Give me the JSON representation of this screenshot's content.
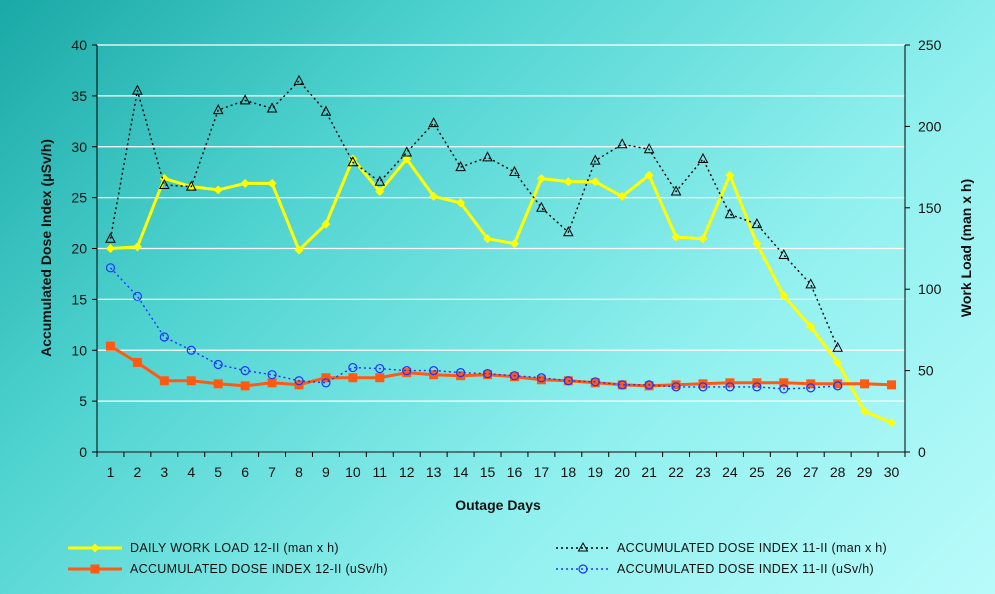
{
  "chart_data": {
    "type": "line",
    "xlabel": "Outage Days",
    "ylabel": "Accumulated Dose Index (μSv/h)",
    "y2label": "Work Load (man x h)",
    "categories": [
      "1",
      "2",
      "3",
      "4",
      "5",
      "6",
      "7",
      "8",
      "9",
      "10",
      "11",
      "12",
      "13",
      "14",
      "15",
      "16",
      "17",
      "18",
      "19",
      "20",
      "21",
      "22",
      "23",
      "24",
      "25",
      "26",
      "27",
      "28",
      "29",
      "30"
    ],
    "ylim": [
      0,
      40
    ],
    "y2lim": [
      0,
      250
    ],
    "yticks": [
      "0",
      "5",
      "10",
      "15",
      "20",
      "25",
      "30",
      "35",
      "40"
    ],
    "y2ticks": [
      "0",
      "50",
      "100",
      "150",
      "200",
      "250"
    ],
    "grid": true,
    "legend_position": "bottom",
    "series": [
      {
        "name": "DAILY WORK LOAD 12-II (man x h)",
        "axis": "right",
        "color": "#ffff00",
        "marker": "diamond",
        "line": "solid",
        "values": [
          125,
          126,
          168,
          163,
          161,
          165,
          165,
          124,
          140,
          180,
          160,
          180,
          157,
          153,
          131,
          128,
          168,
          166,
          166,
          157,
          170,
          132,
          131,
          170,
          128,
          96,
          77,
          55,
          25,
          18
        ]
      },
      {
        "name": "ACCUMULATED DOSE INDEX 12-II (uSv/h)",
        "axis": "left",
        "color": "#ff5a14",
        "marker": "square",
        "line": "solid",
        "values": [
          10.4,
          8.8,
          7.0,
          7.0,
          6.7,
          6.5,
          6.8,
          6.6,
          7.3,
          7.3,
          7.3,
          7.8,
          7.6,
          7.5,
          7.6,
          7.4,
          7.1,
          7.0,
          6.8,
          6.6,
          6.5,
          6.6,
          6.7,
          6.8,
          6.8,
          6.8,
          6.7,
          6.7,
          6.7,
          6.6
        ]
      },
      {
        "name": "ACCUMULATED DOSE INDEX 11-II (man x h)",
        "axis": "right",
        "color": "#000000",
        "marker": "triangle",
        "line": "dotted",
        "values": [
          131,
          222,
          164,
          163,
          210,
          216,
          211,
          228,
          209,
          178,
          166,
          184,
          202,
          175,
          181,
          172,
          150,
          135,
          179,
          189,
          186,
          160,
          180,
          146,
          140,
          121,
          103,
          64,
          null,
          null
        ]
      },
      {
        "name": "ACCUMULATED DOSE INDEX 11-II (uSv/h)",
        "axis": "left",
        "color": "#1a35ff",
        "marker": "circle",
        "line": "dotted",
        "values": [
          18.1,
          15.3,
          11.3,
          10.0,
          8.6,
          8.0,
          7.6,
          7.0,
          6.8,
          8.3,
          8.2,
          8.0,
          8.0,
          7.8,
          7.7,
          7.5,
          7.3,
          7.0,
          6.9,
          6.6,
          6.6,
          6.4,
          6.4,
          6.4,
          6.4,
          6.2,
          6.3,
          6.5,
          null,
          null
        ]
      }
    ]
  }
}
